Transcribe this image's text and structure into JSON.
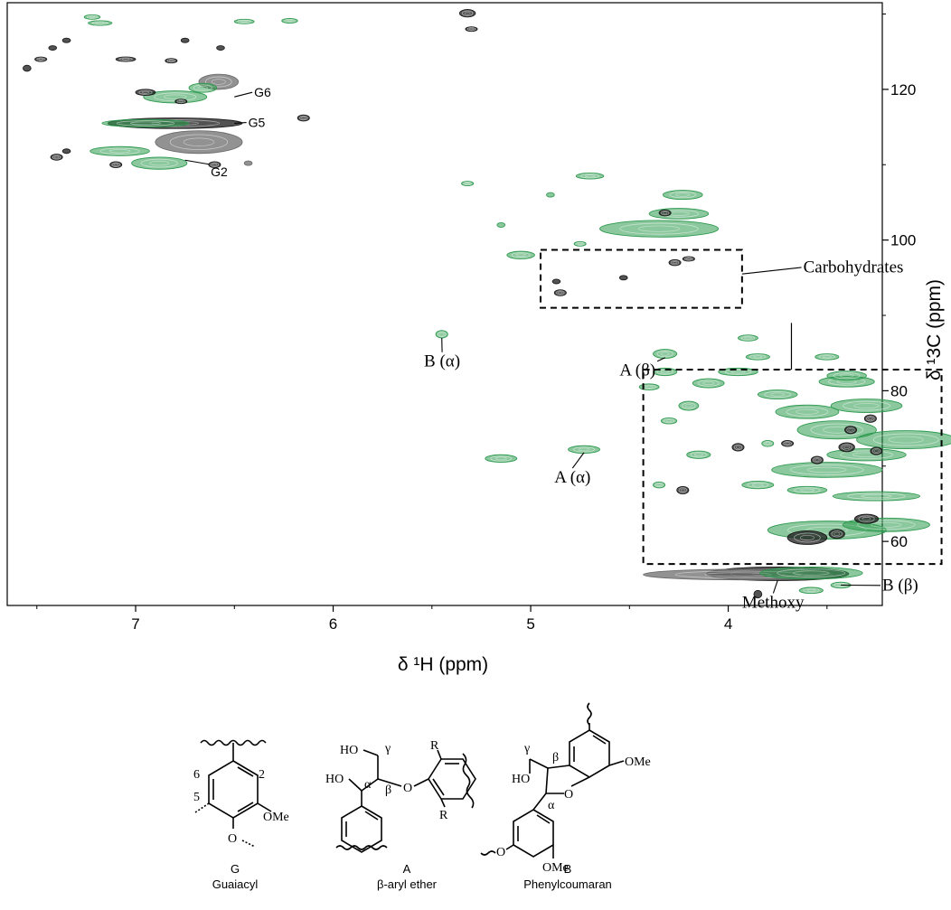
{
  "chart_data": {
    "type": "heatmap",
    "subtype": "2D HSQC NMR contour spectrum",
    "xlabel": "δ ¹H (ppm)",
    "ylabel": "δ ¹3C (ppm)",
    "xlim": [
      7.65,
      3.22
    ],
    "ylim": [
      131.5,
      51.5
    ],
    "x_ticks": [
      {
        "value": 7,
        "label": "7"
      },
      {
        "value": 6,
        "label": "6"
      },
      {
        "value": 5,
        "label": "5"
      },
      {
        "value": 4,
        "label": "4"
      }
    ],
    "y_ticks": [
      {
        "value": 60,
        "label": "60"
      },
      {
        "value": 80,
        "label": "80"
      },
      {
        "value": 100,
        "label": "100"
      },
      {
        "value": 120,
        "label": "120"
      }
    ],
    "x_minor_ticks": [
      7.5,
      6.5,
      5.5,
      4.5,
      3.5
    ],
    "y_minor_ticks": [
      70,
      90,
      110,
      130
    ],
    "grid": false,
    "series_colors": {
      "green": "#2e9a4f",
      "black": "#1a1a1a",
      "gray": "#6e6e6e"
    },
    "cross_peaks": [
      {
        "x": 3.75,
        "y": 55.7,
        "rx": 0.36,
        "ry": 0.9,
        "c": "black"
      },
      {
        "x": 3.95,
        "y": 55.6,
        "rx": 0.48,
        "ry": 0.7,
        "c": "gray"
      },
      {
        "x": 3.58,
        "y": 55.8,
        "rx": 0.26,
        "ry": 0.8,
        "c": "green"
      },
      {
        "x": 3.85,
        "y": 53.0,
        "rx": 0.02,
        "ry": 0.5,
        "c": "black"
      },
      {
        "x": 3.58,
        "y": 53.5,
        "rx": 0.06,
        "ry": 0.4,
        "c": "green"
      },
      {
        "x": 3.43,
        "y": 54.2,
        "rx": 0.05,
        "ry": 0.4,
        "c": "green"
      },
      {
        "x": 3.5,
        "y": 61.5,
        "rx": 0.3,
        "ry": 1.2,
        "c": "green"
      },
      {
        "x": 3.2,
        "y": 62.2,
        "rx": 0.22,
        "ry": 0.9,
        "c": "green"
      },
      {
        "x": 3.6,
        "y": 60.5,
        "rx": 0.1,
        "ry": 0.9,
        "c": "black"
      },
      {
        "x": 3.45,
        "y": 61.0,
        "rx": 0.04,
        "ry": 0.6,
        "c": "black"
      },
      {
        "x": 3.3,
        "y": 63.0,
        "rx": 0.06,
        "ry": 0.6,
        "c": "black"
      },
      {
        "x": 3.25,
        "y": 66.0,
        "rx": 0.22,
        "ry": 0.6,
        "c": "green"
      },
      {
        "x": 3.6,
        "y": 66.8,
        "rx": 0.1,
        "ry": 0.5,
        "c": "green"
      },
      {
        "x": 3.85,
        "y": 67.5,
        "rx": 0.08,
        "ry": 0.5,
        "c": "green"
      },
      {
        "x": 3.5,
        "y": 69.5,
        "rx": 0.28,
        "ry": 1.0,
        "c": "green"
      },
      {
        "x": 3.3,
        "y": 71.5,
        "rx": 0.2,
        "ry": 0.8,
        "c": "green"
      },
      {
        "x": 3.1,
        "y": 73.5,
        "rx": 0.25,
        "ry": 1.2,
        "c": "green"
      },
      {
        "x": 3.45,
        "y": 74.8,
        "rx": 0.2,
        "ry": 1.2,
        "c": "green"
      },
      {
        "x": 3.6,
        "y": 77.2,
        "rx": 0.16,
        "ry": 0.9,
        "c": "green"
      },
      {
        "x": 3.3,
        "y": 78.0,
        "rx": 0.18,
        "ry": 0.9,
        "c": "green"
      },
      {
        "x": 3.75,
        "y": 79.5,
        "rx": 0.1,
        "ry": 0.6,
        "c": "green"
      },
      {
        "x": 3.4,
        "y": 81.2,
        "rx": 0.14,
        "ry": 0.7,
        "c": "green"
      },
      {
        "x": 3.55,
        "y": 70.8,
        "rx": 0.03,
        "ry": 0.5,
        "c": "black"
      },
      {
        "x": 3.4,
        "y": 72.5,
        "rx": 0.04,
        "ry": 0.6,
        "c": "black"
      },
      {
        "x": 3.25,
        "y": 72.0,
        "rx": 0.03,
        "ry": 0.5,
        "c": "black"
      },
      {
        "x": 3.38,
        "y": 74.8,
        "rx": 0.03,
        "ry": 0.5,
        "c": "black"
      },
      {
        "x": 3.28,
        "y": 76.3,
        "rx": 0.03,
        "ry": 0.5,
        "c": "black"
      },
      {
        "x": 3.7,
        "y": 73.0,
        "rx": 0.03,
        "ry": 0.4,
        "c": "black"
      },
      {
        "x": 4.15,
        "y": 71.5,
        "rx": 0.06,
        "ry": 0.5,
        "c": "green"
      },
      {
        "x": 4.23,
        "y": 66.8,
        "rx": 0.03,
        "ry": 0.5,
        "c": "black"
      },
      {
        "x": 3.95,
        "y": 72.5,
        "rx": 0.03,
        "ry": 0.5,
        "c": "black"
      },
      {
        "x": 3.8,
        "y": 73.0,
        "rx": 0.03,
        "ry": 0.4,
        "c": "green"
      },
      {
        "x": 4.3,
        "y": 76.0,
        "rx": 0.04,
        "ry": 0.4,
        "c": "green"
      },
      {
        "x": 4.2,
        "y": 78.0,
        "rx": 0.05,
        "ry": 0.6,
        "c": "green"
      },
      {
        "x": 4.1,
        "y": 81.0,
        "rx": 0.08,
        "ry": 0.6,
        "c": "green"
      },
      {
        "x": 3.95,
        "y": 82.5,
        "rx": 0.1,
        "ry": 0.5,
        "c": "green"
      },
      {
        "x": 4.4,
        "y": 80.5,
        "rx": 0.05,
        "ry": 0.4,
        "c": "green"
      },
      {
        "x": 4.32,
        "y": 82.5,
        "rx": 0.06,
        "ry": 0.5,
        "c": "green"
      },
      {
        "x": 3.85,
        "y": 84.5,
        "rx": 0.06,
        "ry": 0.4,
        "c": "green"
      },
      {
        "x": 3.5,
        "y": 84.5,
        "rx": 0.06,
        "ry": 0.4,
        "c": "green"
      },
      {
        "x": 3.4,
        "y": 82.0,
        "rx": 0.1,
        "ry": 0.6,
        "c": "green"
      },
      {
        "x": 4.35,
        "y": 67.5,
        "rx": 0.03,
        "ry": 0.4,
        "c": "green"
      },
      {
        "x": 4.73,
        "y": 72.2,
        "rx": 0.08,
        "ry": 0.5,
        "c": "green"
      },
      {
        "x": 5.15,
        "y": 71.0,
        "rx": 0.08,
        "ry": 0.5,
        "c": "green"
      },
      {
        "x": 4.32,
        "y": 84.9,
        "rx": 0.06,
        "ry": 0.6,
        "c": "green"
      },
      {
        "x": 3.9,
        "y": 87.0,
        "rx": 0.05,
        "ry": 0.4,
        "c": "green"
      },
      {
        "x": 5.45,
        "y": 87.5,
        "rx": 0.03,
        "ry": 0.5,
        "c": "green"
      },
      {
        "x": 4.85,
        "y": 93.0,
        "rx": 0.03,
        "ry": 0.4,
        "c": "black"
      },
      {
        "x": 4.87,
        "y": 94.5,
        "rx": 0.02,
        "ry": 0.3,
        "c": "black"
      },
      {
        "x": 4.53,
        "y": 95.0,
        "rx": 0.02,
        "ry": 0.3,
        "c": "black"
      },
      {
        "x": 4.27,
        "y": 97.0,
        "rx": 0.03,
        "ry": 0.4,
        "c": "black"
      },
      {
        "x": 4.2,
        "y": 97.5,
        "rx": 0.03,
        "ry": 0.3,
        "c": "black"
      },
      {
        "x": 5.05,
        "y": 98.0,
        "rx": 0.07,
        "ry": 0.5,
        "c": "green"
      },
      {
        "x": 4.75,
        "y": 99.5,
        "rx": 0.03,
        "ry": 0.3,
        "c": "green"
      },
      {
        "x": 4.35,
        "y": 101.5,
        "rx": 0.3,
        "ry": 1.1,
        "c": "green"
      },
      {
        "x": 4.25,
        "y": 103.5,
        "rx": 0.15,
        "ry": 0.7,
        "c": "green"
      },
      {
        "x": 4.32,
        "y": 103.6,
        "rx": 0.03,
        "ry": 0.4,
        "c": "black"
      },
      {
        "x": 4.23,
        "y": 106.0,
        "rx": 0.1,
        "ry": 0.6,
        "c": "green"
      },
      {
        "x": 5.15,
        "y": 102.0,
        "rx": 0.02,
        "ry": 0.3,
        "c": "green"
      },
      {
        "x": 5.32,
        "y": 107.5,
        "rx": 0.03,
        "ry": 0.3,
        "c": "green"
      },
      {
        "x": 4.9,
        "y": 106.0,
        "rx": 0.02,
        "ry": 0.3,
        "c": "green"
      },
      {
        "x": 4.7,
        "y": 108.5,
        "rx": 0.07,
        "ry": 0.4,
        "c": "green"
      },
      {
        "x": 6.88,
        "y": 110.2,
        "rx": 0.14,
        "ry": 0.8,
        "c": "green"
      },
      {
        "x": 7.08,
        "y": 111.8,
        "rx": 0.15,
        "ry": 0.6,
        "c": "green"
      },
      {
        "x": 6.68,
        "y": 113.0,
        "rx": 0.22,
        "ry": 1.5,
        "c": "gray"
      },
      {
        "x": 6.8,
        "y": 115.5,
        "rx": 0.34,
        "ry": 0.7,
        "c": "black"
      },
      {
        "x": 6.95,
        "y": 115.5,
        "rx": 0.22,
        "ry": 0.5,
        "c": "green"
      },
      {
        "x": 7.1,
        "y": 110.0,
        "rx": 0.03,
        "ry": 0.4,
        "c": "black"
      },
      {
        "x": 7.4,
        "y": 111.0,
        "rx": 0.03,
        "ry": 0.4,
        "c": "black"
      },
      {
        "x": 7.35,
        "y": 111.8,
        "rx": 0.02,
        "ry": 0.3,
        "c": "black"
      },
      {
        "x": 6.6,
        "y": 110.0,
        "rx": 0.03,
        "ry": 0.4,
        "c": "black"
      },
      {
        "x": 6.43,
        "y": 110.2,
        "rx": 0.02,
        "ry": 0.3,
        "c": "gray"
      },
      {
        "x": 6.15,
        "y": 116.2,
        "rx": 0.03,
        "ry": 0.4,
        "c": "black"
      },
      {
        "x": 6.8,
        "y": 119.0,
        "rx": 0.16,
        "ry": 0.8,
        "c": "green"
      },
      {
        "x": 6.95,
        "y": 119.6,
        "rx": 0.05,
        "ry": 0.4,
        "c": "black"
      },
      {
        "x": 6.77,
        "y": 118.4,
        "rx": 0.03,
        "ry": 0.3,
        "c": "black"
      },
      {
        "x": 6.58,
        "y": 121.0,
        "rx": 0.1,
        "ry": 1.0,
        "c": "gray"
      },
      {
        "x": 6.66,
        "y": 120.2,
        "rx": 0.07,
        "ry": 0.6,
        "c": "green"
      },
      {
        "x": 7.55,
        "y": 122.8,
        "rx": 0.02,
        "ry": 0.4,
        "c": "black"
      },
      {
        "x": 7.48,
        "y": 124.0,
        "rx": 0.03,
        "ry": 0.3,
        "c": "black"
      },
      {
        "x": 7.42,
        "y": 125.5,
        "rx": 0.02,
        "ry": 0.3,
        "c": "black"
      },
      {
        "x": 7.35,
        "y": 126.5,
        "rx": 0.02,
        "ry": 0.3,
        "c": "black"
      },
      {
        "x": 7.05,
        "y": 124.0,
        "rx": 0.05,
        "ry": 0.3,
        "c": "black"
      },
      {
        "x": 6.82,
        "y": 123.8,
        "rx": 0.03,
        "ry": 0.3,
        "c": "black"
      },
      {
        "x": 6.75,
        "y": 126.5,
        "rx": 0.02,
        "ry": 0.3,
        "c": "black"
      },
      {
        "x": 6.57,
        "y": 125.5,
        "rx": 0.02,
        "ry": 0.3,
        "c": "black"
      },
      {
        "x": 7.18,
        "y": 128.8,
        "rx": 0.06,
        "ry": 0.3,
        "c": "green"
      },
      {
        "x": 7.22,
        "y": 129.6,
        "rx": 0.04,
        "ry": 0.3,
        "c": "green"
      },
      {
        "x": 6.45,
        "y": 129.0,
        "rx": 0.05,
        "ry": 0.3,
        "c": "green"
      },
      {
        "x": 6.22,
        "y": 129.1,
        "rx": 0.04,
        "ry": 0.3,
        "c": "green"
      },
      {
        "x": 5.3,
        "y": 128.0,
        "rx": 0.03,
        "ry": 0.3,
        "c": "black"
      },
      {
        "x": 5.32,
        "y": 130.1,
        "rx": 0.04,
        "ry": 0.5,
        "c": "black"
      }
    ],
    "annotations": [
      {
        "text": "Methoxy",
        "x": 3.93,
        "y": 51.2,
        "ax": 3.75,
        "ay": 54.8
      },
      {
        "text": "B (β)",
        "x": 3.22,
        "y": 53.5,
        "ax": 3.43,
        "ay": 54.2
      },
      {
        "text": "A (α)",
        "x": 4.88,
        "y": 67.8,
        "ax": 4.73,
        "ay": 71.8
      },
      {
        "text": "B (α)",
        "x": 5.54,
        "y": 83.2,
        "ax": 5.45,
        "ay": 87.0
      },
      {
        "text": "A (β)",
        "x": 4.55,
        "y": 82.0,
        "ax": 4.32,
        "ay": 84.4
      },
      {
        "text": "G2",
        "x": 6.62,
        "y": 108.5,
        "ax": 6.75,
        "ay": 110.6
      },
      {
        "text": "G5",
        "x": 6.43,
        "y": 115.0,
        "ax": 6.5,
        "ay": 115.5
      },
      {
        "text": "G6",
        "x": 6.4,
        "y": 119.0,
        "ax": 6.5,
        "ay": 119.0
      },
      {
        "text": "Carbohydrates",
        "x": 3.62,
        "y": 95.7,
        "ax": 3.93,
        "ay": 95.5
      }
    ],
    "boxes": [
      {
        "x1": 4.43,
        "y1": 57.0,
        "x2": 2.92,
        "y2": 82.8
      },
      {
        "x1": 4.95,
        "y1": 91.0,
        "x2": 3.93,
        "y2": 98.7
      }
    ],
    "carbohydrate_leader": [
      {
        "x": 3.68,
        "y": 82.8
      },
      {
        "x": 3.68,
        "y": 89.0
      }
    ]
  },
  "structures": {
    "g": {
      "code": "G",
      "name": "Guaiacyl",
      "labels": {
        "pos6": "6",
        "pos2": "2",
        "pos5": "5",
        "ome": "OMe",
        "o": "O"
      }
    },
    "a": {
      "code": "A",
      "name": "β-aryl ether",
      "labels": {
        "ho_top": "HO",
        "gamma": "γ",
        "ho_left": "HO",
        "alpha": "α",
        "beta": "β",
        "o": "O",
        "r_top": "R",
        "r_bot": "R"
      }
    },
    "b": {
      "code": "B",
      "name": "Phenylcoumaran",
      "labels": {
        "gamma": "γ",
        "beta": "β",
        "ho": "HO",
        "alpha": "α",
        "o": "O",
        "ome_top": "OMe",
        "o_bot": "O",
        "ome_bot": "OMe"
      }
    }
  }
}
